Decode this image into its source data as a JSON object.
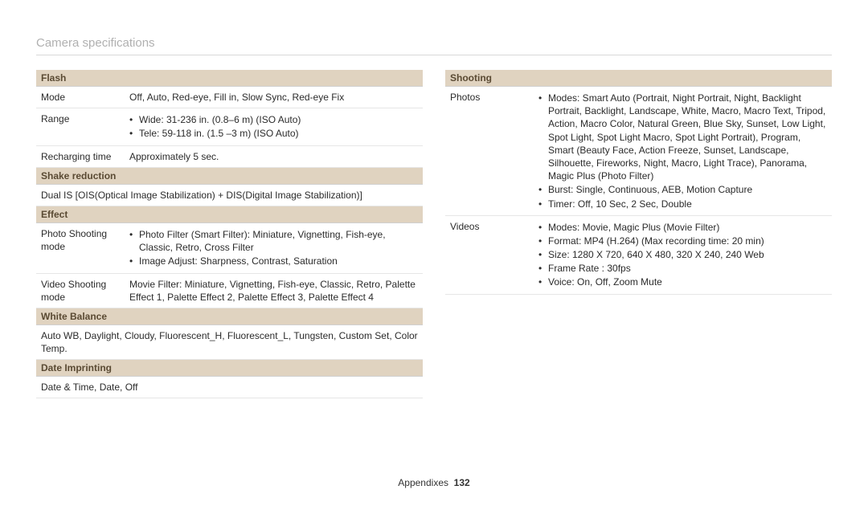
{
  "page": {
    "title": "Camera specifications",
    "footer_label": "Appendixes",
    "footer_page": "132"
  },
  "colors": {
    "section_bg": "#e0d3c0",
    "section_text": "#5a4a33",
    "border": "#e6e6e6",
    "title_color": "#b0b0b0"
  },
  "left": {
    "flash": {
      "header": "Flash",
      "mode_label": "Mode",
      "mode_value": "Off, Auto, Red-eye, Fill in, Slow Sync, Red-eye Fix",
      "range_label": "Range",
      "range_items": [
        "Wide: 31-236 in. (0.8–6 m) (ISO Auto)",
        "Tele: 59-118 in. (1.5 –3 m) (ISO Auto)"
      ],
      "recharge_label": "Recharging time",
      "recharge_value": "Approximately 5 sec."
    },
    "shake": {
      "header": "Shake reduction",
      "value": "Dual IS [OIS(Optical Image Stabilization) + DIS(Digital Image Stabilization)]"
    },
    "effect": {
      "header": "Effect",
      "photo_label": "Photo Shooting mode",
      "photo_items": [
        "Photo Filter (Smart Filter): Miniature, Vignetting, Fish-eye, Classic, Retro, Cross Filter",
        "Image Adjust: Sharpness, Contrast, Saturation"
      ],
      "video_label": "Video Shooting mode",
      "video_value": "Movie Filter: Miniature, Vignetting, Fish-eye, Classic, Retro, Palette Effect 1, Palette Effect 2, Palette Effect 3, Palette Effect 4"
    },
    "wb": {
      "header": "White Balance",
      "value": "Auto WB, Daylight, Cloudy, Fluorescent_H, Fluorescent_L, Tungsten, Custom Set, Color Temp."
    },
    "date": {
      "header": "Date Imprinting",
      "value": "Date & Time, Date, Off"
    }
  },
  "right": {
    "shooting": {
      "header": "Shooting",
      "photos_label": "Photos",
      "photos_items": [
        "Modes: Smart Auto (Portrait, Night Portrait, Night, Backlight Portrait, Backlight, Landscape, White, Macro, Macro Text, Tripod, Action, Macro Color, Natural Green, Blue Sky, Sunset, Low Light, Spot Light, Spot Light Macro, Spot Light Portrait), Program, Smart (Beauty Face, Action Freeze, Sunset, Landscape, Silhouette, Fireworks, Night, Macro, Light Trace), Panorama, Magic Plus (Photo Filter)",
        "Burst: Single, Continuous, AEB, Motion Capture",
        "Timer: Off, 10 Sec, 2 Sec, Double"
      ],
      "videos_label": "Videos",
      "videos_items": [
        "Modes: Movie, Magic Plus (Movie Filter)",
        "Format: MP4 (H.264) (Max recording time: 20 min)",
        "Size: 1280 X 720, 640 X 480, 320 X 240, 240 Web",
        "Frame Rate : 30fps",
        "Voice: On, Off, Zoom Mute"
      ]
    }
  }
}
